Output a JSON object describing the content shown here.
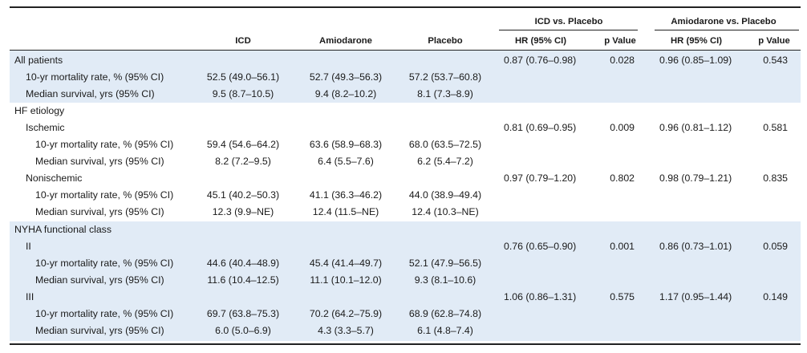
{
  "header": {
    "group1": "ICD vs. Placebo",
    "group2": "Amiodarone vs. Placebo",
    "col_icd": "ICD",
    "col_amio": "Amiodarone",
    "col_placebo": "Placebo",
    "hr1": "HR (95% CI)",
    "p1": "p Value",
    "hr2": "HR (95% CI)",
    "p2": "p Value"
  },
  "rows": [
    {
      "label": "All patients",
      "icd": "",
      "amio": "",
      "placebo": "",
      "hr1": "0.87 (0.76–0.98)",
      "p1": "0.028",
      "hr2": "0.96 (0.85–1.09)",
      "p2": "0.543"
    },
    {
      "label": "10-yr mortality rate, % (95% CI)",
      "icd": "52.5 (49.0–56.1)",
      "amio": "52.7 (49.3–56.3)",
      "placebo": "57.2 (53.7–60.8)",
      "hr1": "",
      "p1": "",
      "hr2": "",
      "p2": ""
    },
    {
      "label": "Median survival, yrs (95% CI)",
      "icd": "9.5 (8.7–10.5)",
      "amio": "9.4 (8.2–10.2)",
      "placebo": "8.1 (7.3–8.9)",
      "hr1": "",
      "p1": "",
      "hr2": "",
      "p2": ""
    },
    {
      "label": "HF etiology",
      "icd": "",
      "amio": "",
      "placebo": "",
      "hr1": "",
      "p1": "",
      "hr2": "",
      "p2": ""
    },
    {
      "label": "Ischemic",
      "icd": "",
      "amio": "",
      "placebo": "",
      "hr1": "0.81 (0.69–0.95)",
      "p1": "0.009",
      "hr2": "0.96 (0.81–1.12)",
      "p2": "0.581"
    },
    {
      "label": "10-yr mortality rate, % (95% CI)",
      "icd": "59.4 (54.6–64.2)",
      "amio": "63.6 (58.9–68.3)",
      "placebo": "68.0 (63.5–72.5)",
      "hr1": "",
      "p1": "",
      "hr2": "",
      "p2": ""
    },
    {
      "label": "Median survival, yrs (95% CI)",
      "icd": "8.2 (7.2–9.5)",
      "amio": "6.4 (5.5–7.6)",
      "placebo": "6.2 (5.4–7.2)",
      "hr1": "",
      "p1": "",
      "hr2": "",
      "p2": ""
    },
    {
      "label": "Nonischemic",
      "icd": "",
      "amio": "",
      "placebo": "",
      "hr1": "0.97 (0.79–1.20)",
      "p1": "0.802",
      "hr2": "0.98 (0.79–1.21)",
      "p2": "0.835"
    },
    {
      "label": "10-yr mortality rate, % (95% CI)",
      "icd": "45.1 (40.2–50.3)",
      "amio": "41.1 (36.3–46.2)",
      "placebo": "44.0 (38.9–49.4)",
      "hr1": "",
      "p1": "",
      "hr2": "",
      "p2": ""
    },
    {
      "label": "Median survival, yrs (95% CI)",
      "icd": "12.3 (9.9–NE)",
      "amio": "12.4 (11.5–NE)",
      "placebo": "12.4 (10.3–NE)",
      "hr1": "",
      "p1": "",
      "hr2": "",
      "p2": ""
    },
    {
      "label": "NYHA functional class",
      "icd": "",
      "amio": "",
      "placebo": "",
      "hr1": "",
      "p1": "",
      "hr2": "",
      "p2": ""
    },
    {
      "label": "II",
      "icd": "",
      "amio": "",
      "placebo": "",
      "hr1": "0.76 (0.65–0.90)",
      "p1": "0.001",
      "hr2": "0.86 (0.73–1.01)",
      "p2": "0.059"
    },
    {
      "label": "10-yr mortality rate, % (95% CI)",
      "icd": "44.6 (40.4–48.9)",
      "amio": "45.4 (41.4–49.7)",
      "placebo": "52.1 (47.9–56.5)",
      "hr1": "",
      "p1": "",
      "hr2": "",
      "p2": ""
    },
    {
      "label": "Median survival, yrs (95% CI)",
      "icd": "11.6 (10.4–12.5)",
      "amio": "11.1 (10.1–12.0)",
      "placebo": "9.3 (8.1–10.6)",
      "hr1": "",
      "p1": "",
      "hr2": "",
      "p2": ""
    },
    {
      "label": "III",
      "icd": "",
      "amio": "",
      "placebo": "",
      "hr1": "1.06 (0.86–1.31)",
      "p1": "0.575",
      "hr2": "1.17 (0.95–1.44)",
      "p2": "0.149"
    },
    {
      "label": "10-yr mortality rate, % (95% CI)",
      "icd": "69.7 (63.8–75.3)",
      "amio": "70.2 (64.2–75.9)",
      "placebo": "68.9 (62.8–74.8)",
      "hr1": "",
      "p1": "",
      "hr2": "",
      "p2": ""
    },
    {
      "label": "Median survival, yrs (95% CI)",
      "icd": "6.0 (5.0–6.9)",
      "amio": "4.3 (3.3–5.7)",
      "placebo": "6.1 (4.8–7.4)",
      "hr1": "",
      "p1": "",
      "hr2": "",
      "p2": ""
    }
  ],
  "colors": {
    "band": "#e1ebf6",
    "rule": "#222222",
    "text": "#1a1a1a"
  }
}
